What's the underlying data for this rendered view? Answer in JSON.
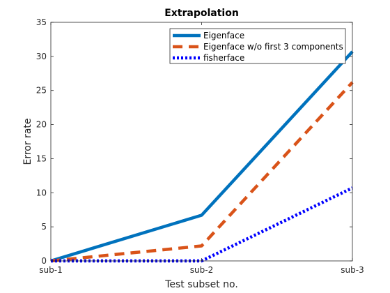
{
  "chart_data": {
    "type": "line",
    "title": "Extrapolation",
    "xlabel": "Test subset no.",
    "ylabel": "Error rate",
    "categories": [
      "sub-1",
      "sub-2",
      "sub-3"
    ],
    "ylim": [
      0,
      35
    ],
    "yticks": [
      0,
      5,
      10,
      15,
      20,
      25,
      30,
      35
    ],
    "grid": false,
    "legend_position": "top-right",
    "series": [
      {
        "name": "Eigenface",
        "values": [
          0,
          6.7,
          30.7
        ],
        "color": "#0072bd",
        "style": "solid"
      },
      {
        "name": "Eigenface w/o first 3 components",
        "values": [
          0,
          2.2,
          26.2
        ],
        "color": "#d95319",
        "style": "dashed"
      },
      {
        "name": "fisherface",
        "values": [
          0,
          0,
          10.7
        ],
        "color": "#0000ff",
        "style": "dotted"
      }
    ]
  }
}
